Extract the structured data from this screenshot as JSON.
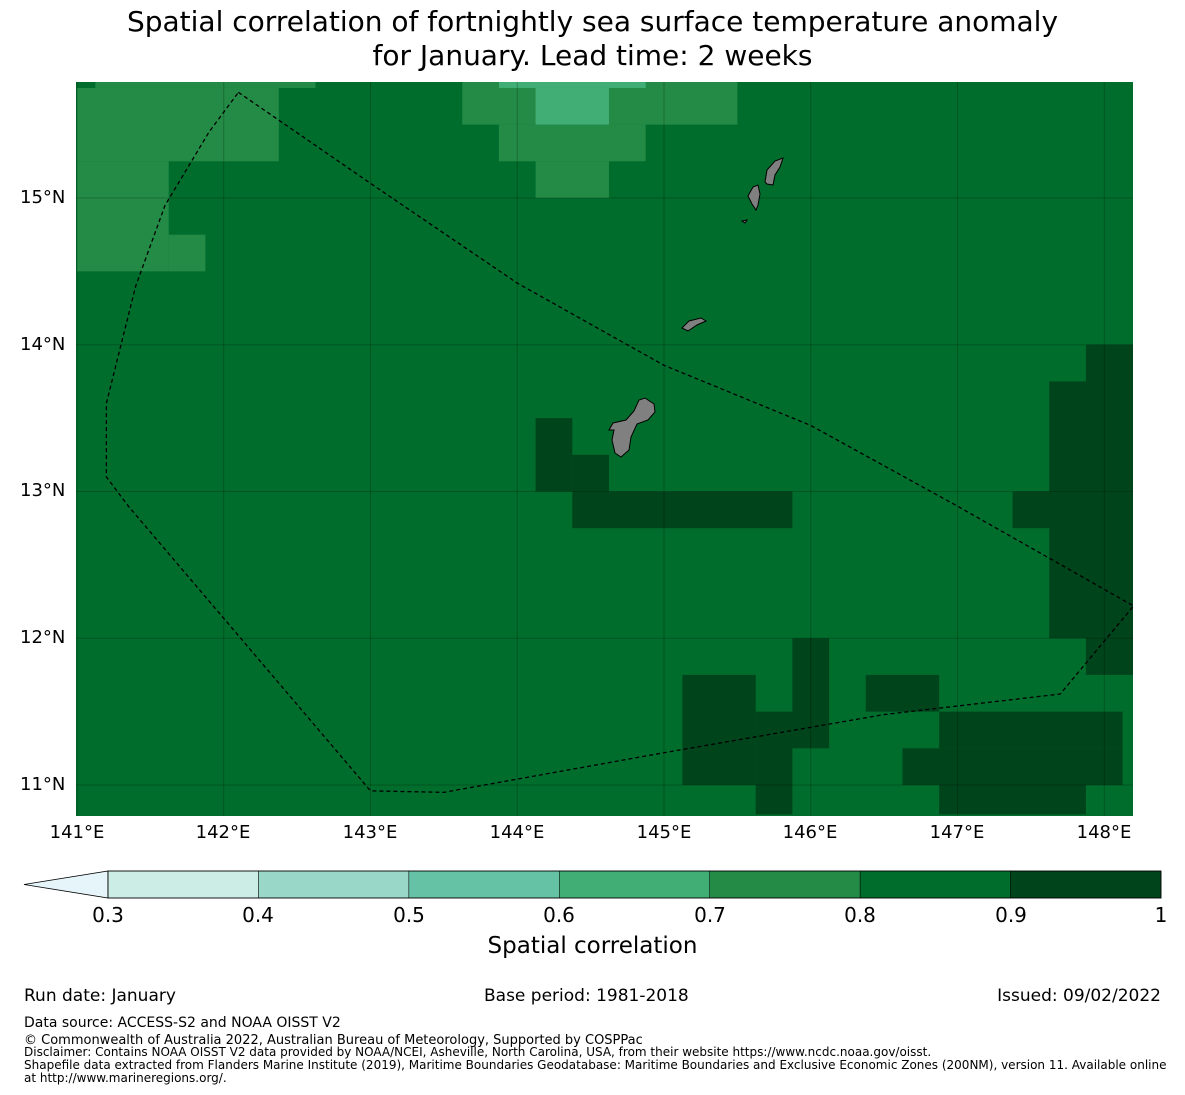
{
  "title": {
    "line1": "Spatial correlation of fortnightly sea surface temperature anomaly",
    "line2": "for January. Lead time: 2 weeks"
  },
  "map": {
    "lon_range": [
      141.0,
      148.2
    ],
    "lat_range": [
      10.8,
      15.8
    ],
    "lat_ticks": [
      "15°N",
      "14°N",
      "13°N",
      "12°N",
      "11°N"
    ],
    "lon_ticks": [
      "141°E",
      "142°E",
      "143°E",
      "144°E",
      "145°E",
      "146°E",
      "147°E",
      "148°E"
    ],
    "land_color": "#808080",
    "eez_boundary": [
      [
        142.1,
        15.72
      ],
      [
        143.0,
        15.1
      ],
      [
        144.0,
        14.42
      ],
      [
        145.0,
        13.86
      ],
      [
        146.0,
        13.45
      ],
      [
        147.0,
        12.9
      ],
      [
        148.2,
        12.22
      ],
      [
        147.7,
        11.62
      ],
      [
        146.5,
        11.48
      ],
      [
        145.0,
        11.22
      ],
      [
        143.5,
        10.95
      ],
      [
        143.0,
        10.96
      ],
      [
        141.35,
        12.9
      ],
      [
        141.2,
        13.1
      ],
      [
        141.2,
        13.6
      ],
      [
        141.4,
        14.4
      ],
      [
        141.6,
        14.95
      ],
      [
        141.9,
        15.45
      ],
      [
        142.1,
        15.72
      ]
    ],
    "grid_cells_bounds_note": "cells of 0.25 deg",
    "correlation_cells": [
      {
        "lon": [
          141.0,
          142.375
        ],
        "lat": [
          15.25,
          15.75
        ],
        "value": 0.75
      },
      {
        "lon": [
          141.0,
          141.625
        ],
        "lat": [
          14.5,
          15.25
        ],
        "value": 0.75
      },
      {
        "lon": [
          141.625,
          141.875
        ],
        "lat": [
          14.5,
          14.75
        ],
        "value": 0.75
      },
      {
        "lon": [
          141.125,
          142.625
        ],
        "lat": [
          15.75,
          15.8
        ],
        "value": 0.75
      },
      {
        "lon": [
          143.625,
          145.5
        ],
        "lat": [
          15.5,
          15.8
        ],
        "value": 0.75
      },
      {
        "lon": [
          143.875,
          144.875
        ],
        "lat": [
          15.25,
          15.5
        ],
        "value": 0.75
      },
      {
        "lon": [
          144.125,
          144.625
        ],
        "lat": [
          15.0,
          15.25
        ],
        "value": 0.75
      },
      {
        "lon": [
          144.125,
          144.625
        ],
        "lat": [
          15.5,
          15.75
        ],
        "value": 0.65
      },
      {
        "lon": [
          143.875,
          144.875
        ],
        "lat": [
          15.75,
          15.8
        ],
        "value": 0.65
      },
      {
        "lon": [
          144.125,
          144.375
        ],
        "lat": [
          13.0,
          13.5
        ],
        "value": 0.95
      },
      {
        "lon": [
          144.375,
          144.625
        ],
        "lat": [
          13.0,
          13.25
        ],
        "value": 0.95
      },
      {
        "lon": [
          144.375,
          145.875
        ],
        "lat": [
          12.75,
          13.0
        ],
        "value": 0.95
      },
      {
        "lon": [
          147.375,
          148.2
        ],
        "lat": [
          12.75,
          13.0
        ],
        "value": 0.95
      },
      {
        "lon": [
          147.625,
          148.2
        ],
        "lat": [
          12.0,
          13.75
        ],
        "value": 0.95
      },
      {
        "lon": [
          147.875,
          148.2
        ],
        "lat": [
          11.75,
          14.0
        ],
        "value": 0.95
      },
      {
        "lon": [
          145.125,
          145.625
        ],
        "lat": [
          11.0,
          11.75
        ],
        "value": 0.95
      },
      {
        "lon": [
          145.625,
          145.875
        ],
        "lat": [
          10.8,
          11.5
        ],
        "value": 0.95
      },
      {
        "lon": [
          145.875,
          146.125
        ],
        "lat": [
          11.25,
          12.0
        ],
        "value": 0.95
      },
      {
        "lon": [
          146.375,
          146.875
        ],
        "lat": [
          11.5,
          11.75
        ],
        "value": 0.95
      },
      {
        "lon": [
          146.625,
          148.125
        ],
        "lat": [
          11.0,
          11.25
        ],
        "value": 0.95
      },
      {
        "lon": [
          146.875,
          148.125
        ],
        "lat": [
          11.25,
          11.5
        ],
        "value": 0.95
      },
      {
        "lon": [
          146.875,
          147.875
        ],
        "lat": [
          10.8,
          11.0
        ],
        "value": 0.95
      }
    ]
  },
  "colorbar": {
    "label": "Spatial correlation",
    "ticks": [
      "0.3",
      "0.4",
      "0.5",
      "0.6",
      "0.7",
      "0.8",
      "0.9",
      "1"
    ],
    "colors": [
      "#e5f5f9",
      "#ccece6",
      "#99d8c9",
      "#66c2a4",
      "#41ae76",
      "#238b45",
      "#006d2c",
      "#00441b"
    ]
  },
  "footer": {
    "run_date": "Run date: January",
    "base_period": "Base period: 1981-2018",
    "issued": "Issued: 09/02/2022",
    "data_source": "Data source: ACCESS-S2 and NOAA OISST V2",
    "copyright": "© Commonwealth of Australia 2022, Australian Bureau of Meteorology, Supported by COSPPac",
    "disclaimer": "Disclaimer: Contains NOAA OISST V2 data provided by NOAA/NCEI, Asheville, North Carolina, USA, from their website https://www.ncdc.noaa.gov/oisst.",
    "shapefile1": "Shapefile data extracted from Flanders Marine Institute (2019), Maritime Boundaries Geodatabase: Maritime Boundaries and Exclusive Economic Zones (200NM), version 11. Available online",
    "shapefile2": "at http://www.marineregions.org/."
  }
}
